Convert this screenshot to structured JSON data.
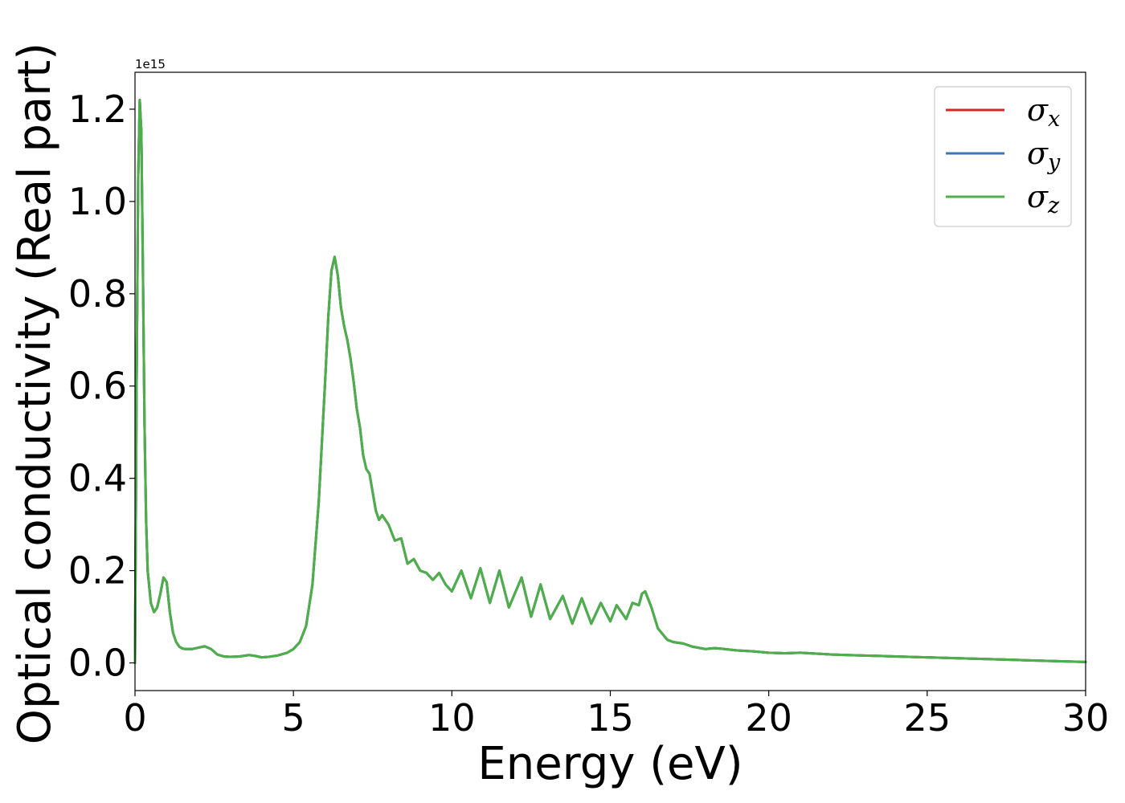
{
  "chart_data": {
    "type": "line",
    "xlabel": "Energy (eV)",
    "ylabel": "Optical conductivity (Real part)",
    "y_offset_text": "1e15",
    "xlim": [
      0,
      30
    ],
    "ylim": [
      -0.06,
      1.28
    ],
    "x_ticks": [
      0,
      5,
      10,
      15,
      20,
      25,
      30
    ],
    "x_tick_labels": [
      "0",
      "5",
      "10",
      "15",
      "20",
      "25",
      "30"
    ],
    "y_ticks": [
      0.0,
      0.2,
      0.4,
      0.6,
      0.8,
      1.0,
      1.2
    ],
    "y_tick_labels": [
      "0.0",
      "0.2",
      "0.4",
      "0.6",
      "0.8",
      "1.0",
      "1.2"
    ],
    "grid": false,
    "legend_position": "top-right",
    "series": [
      {
        "name": "σx",
        "symbol": "σ",
        "subscript": "x",
        "color": "#d62728",
        "x": [
          0,
          0.05,
          0.1,
          0.15,
          0.2,
          0.25,
          0.3,
          0.35,
          0.4,
          0.5,
          0.6,
          0.7,
          0.8,
          0.9,
          1.0,
          1.1,
          1.2,
          1.3,
          1.4,
          1.5,
          1.6,
          1.8,
          2.0,
          2.2,
          2.4,
          2.6,
          2.8,
          3.0,
          3.3,
          3.6,
          3.8,
          4.0,
          4.2,
          4.5,
          4.8,
          5.0,
          5.2,
          5.4,
          5.6,
          5.8,
          6.0,
          6.1,
          6.2,
          6.3,
          6.4,
          6.5,
          6.6,
          6.7,
          6.8,
          6.9,
          7.0,
          7.1,
          7.2,
          7.3,
          7.4,
          7.5,
          7.6,
          7.7,
          7.8,
          8.0,
          8.2,
          8.4,
          8.6,
          8.8,
          9.0,
          9.2,
          9.4,
          9.6,
          9.8,
          10.0,
          10.3,
          10.6,
          10.9,
          11.2,
          11.5,
          11.8,
          12.2,
          12.5,
          12.8,
          13.1,
          13.5,
          13.8,
          14.1,
          14.4,
          14.7,
          15.0,
          15.2,
          15.5,
          15.7,
          15.9,
          16.0,
          16.1,
          16.3,
          16.5,
          16.8,
          17.0,
          17.3,
          17.6,
          18.0,
          18.3,
          18.6,
          19.0,
          19.5,
          20.0,
          20.5,
          21.0,
          21.5,
          22.0,
          22.5,
          23.0,
          23.5,
          24.0,
          25.0,
          26.0,
          27.0,
          28.0,
          29.0,
          30.0
        ],
        "y": [
          0.0,
          0.6,
          1.05,
          1.22,
          1.15,
          0.85,
          0.52,
          0.31,
          0.2,
          0.13,
          0.11,
          0.12,
          0.15,
          0.185,
          0.175,
          0.11,
          0.065,
          0.045,
          0.035,
          0.031,
          0.03,
          0.03,
          0.033,
          0.036,
          0.03,
          0.018,
          0.014,
          0.013,
          0.014,
          0.017,
          0.015,
          0.012,
          0.013,
          0.016,
          0.022,
          0.03,
          0.045,
          0.08,
          0.17,
          0.35,
          0.61,
          0.75,
          0.85,
          0.88,
          0.84,
          0.77,
          0.73,
          0.7,
          0.66,
          0.61,
          0.55,
          0.51,
          0.45,
          0.42,
          0.41,
          0.37,
          0.33,
          0.31,
          0.32,
          0.3,
          0.265,
          0.27,
          0.215,
          0.225,
          0.2,
          0.195,
          0.18,
          0.195,
          0.17,
          0.155,
          0.2,
          0.14,
          0.205,
          0.13,
          0.2,
          0.12,
          0.185,
          0.1,
          0.17,
          0.095,
          0.145,
          0.085,
          0.14,
          0.085,
          0.13,
          0.09,
          0.125,
          0.095,
          0.13,
          0.125,
          0.15,
          0.155,
          0.12,
          0.075,
          0.05,
          0.045,
          0.042,
          0.035,
          0.03,
          0.032,
          0.03,
          0.027,
          0.025,
          0.022,
          0.021,
          0.022,
          0.02,
          0.018,
          0.017,
          0.016,
          0.015,
          0.014,
          0.012,
          0.01,
          0.008,
          0.006,
          0.004,
          0.002
        ]
      },
      {
        "name": "σy",
        "symbol": "σ",
        "subscript": "y",
        "color": "#3a7ab2",
        "x": [
          0,
          0.05,
          0.1,
          0.15,
          0.2,
          0.25,
          0.3,
          0.35,
          0.4,
          0.5,
          0.6,
          0.7,
          0.8,
          0.9,
          1.0,
          1.1,
          1.2,
          1.3,
          1.4,
          1.5,
          1.6,
          1.8,
          2.0,
          2.2,
          2.4,
          2.6,
          2.8,
          3.0,
          3.3,
          3.6,
          3.8,
          4.0,
          4.2,
          4.5,
          4.8,
          5.0,
          5.2,
          5.4,
          5.6,
          5.8,
          6.0,
          6.1,
          6.2,
          6.3,
          6.4,
          6.5,
          6.6,
          6.7,
          6.8,
          6.9,
          7.0,
          7.1,
          7.2,
          7.3,
          7.4,
          7.5,
          7.6,
          7.7,
          7.8,
          8.0,
          8.2,
          8.4,
          8.6,
          8.8,
          9.0,
          9.2,
          9.4,
          9.6,
          9.8,
          10.0,
          10.3,
          10.6,
          10.9,
          11.2,
          11.5,
          11.8,
          12.2,
          12.5,
          12.8,
          13.1,
          13.5,
          13.8,
          14.1,
          14.4,
          14.7,
          15.0,
          15.2,
          15.5,
          15.7,
          15.9,
          16.0,
          16.1,
          16.3,
          16.5,
          16.8,
          17.0,
          17.3,
          17.6,
          18.0,
          18.3,
          18.6,
          19.0,
          19.5,
          20.0,
          20.5,
          21.0,
          21.5,
          22.0,
          22.5,
          23.0,
          23.5,
          24.0,
          25.0,
          26.0,
          27.0,
          28.0,
          29.0,
          30.0
        ],
        "y": [
          0.0,
          0.6,
          1.05,
          1.22,
          1.15,
          0.85,
          0.52,
          0.31,
          0.2,
          0.13,
          0.11,
          0.12,
          0.15,
          0.185,
          0.175,
          0.11,
          0.065,
          0.045,
          0.035,
          0.031,
          0.03,
          0.03,
          0.033,
          0.036,
          0.03,
          0.018,
          0.014,
          0.013,
          0.014,
          0.017,
          0.015,
          0.012,
          0.013,
          0.016,
          0.022,
          0.03,
          0.045,
          0.08,
          0.17,
          0.35,
          0.61,
          0.75,
          0.85,
          0.88,
          0.84,
          0.77,
          0.73,
          0.7,
          0.66,
          0.61,
          0.55,
          0.51,
          0.45,
          0.42,
          0.41,
          0.37,
          0.33,
          0.31,
          0.32,
          0.3,
          0.265,
          0.27,
          0.215,
          0.225,
          0.2,
          0.195,
          0.18,
          0.195,
          0.17,
          0.155,
          0.2,
          0.14,
          0.205,
          0.13,
          0.2,
          0.12,
          0.185,
          0.1,
          0.17,
          0.095,
          0.145,
          0.085,
          0.14,
          0.085,
          0.13,
          0.09,
          0.125,
          0.095,
          0.13,
          0.125,
          0.15,
          0.155,
          0.12,
          0.075,
          0.05,
          0.045,
          0.042,
          0.035,
          0.03,
          0.032,
          0.03,
          0.027,
          0.025,
          0.022,
          0.021,
          0.022,
          0.02,
          0.018,
          0.017,
          0.016,
          0.015,
          0.014,
          0.012,
          0.01,
          0.008,
          0.006,
          0.004,
          0.002
        ]
      },
      {
        "name": "σz",
        "symbol": "σ",
        "subscript": "z",
        "color": "#4daf4a",
        "x": [
          0,
          0.05,
          0.1,
          0.15,
          0.2,
          0.25,
          0.3,
          0.35,
          0.4,
          0.5,
          0.6,
          0.7,
          0.8,
          0.9,
          1.0,
          1.1,
          1.2,
          1.3,
          1.4,
          1.5,
          1.6,
          1.8,
          2.0,
          2.2,
          2.4,
          2.6,
          2.8,
          3.0,
          3.3,
          3.6,
          3.8,
          4.0,
          4.2,
          4.5,
          4.8,
          5.0,
          5.2,
          5.4,
          5.6,
          5.8,
          6.0,
          6.1,
          6.2,
          6.3,
          6.4,
          6.5,
          6.6,
          6.7,
          6.8,
          6.9,
          7.0,
          7.1,
          7.2,
          7.3,
          7.4,
          7.5,
          7.6,
          7.7,
          7.8,
          8.0,
          8.2,
          8.4,
          8.6,
          8.8,
          9.0,
          9.2,
          9.4,
          9.6,
          9.8,
          10.0,
          10.3,
          10.6,
          10.9,
          11.2,
          11.5,
          11.8,
          12.2,
          12.5,
          12.8,
          13.1,
          13.5,
          13.8,
          14.1,
          14.4,
          14.7,
          15.0,
          15.2,
          15.5,
          15.7,
          15.9,
          16.0,
          16.1,
          16.3,
          16.5,
          16.8,
          17.0,
          17.3,
          17.6,
          18.0,
          18.3,
          18.6,
          19.0,
          19.5,
          20.0,
          20.5,
          21.0,
          21.5,
          22.0,
          22.5,
          23.0,
          23.5,
          24.0,
          25.0,
          26.0,
          27.0,
          28.0,
          29.0,
          30.0
        ],
        "y": [
          0.0,
          0.6,
          1.05,
          1.22,
          1.15,
          0.85,
          0.52,
          0.31,
          0.2,
          0.13,
          0.11,
          0.12,
          0.15,
          0.185,
          0.175,
          0.11,
          0.065,
          0.045,
          0.035,
          0.031,
          0.03,
          0.03,
          0.033,
          0.036,
          0.03,
          0.018,
          0.014,
          0.013,
          0.014,
          0.017,
          0.015,
          0.012,
          0.013,
          0.016,
          0.022,
          0.03,
          0.045,
          0.08,
          0.17,
          0.35,
          0.61,
          0.75,
          0.85,
          0.88,
          0.84,
          0.77,
          0.73,
          0.7,
          0.66,
          0.61,
          0.55,
          0.51,
          0.45,
          0.42,
          0.41,
          0.37,
          0.33,
          0.31,
          0.32,
          0.3,
          0.265,
          0.27,
          0.215,
          0.225,
          0.2,
          0.195,
          0.18,
          0.195,
          0.17,
          0.155,
          0.2,
          0.14,
          0.205,
          0.13,
          0.2,
          0.12,
          0.185,
          0.1,
          0.17,
          0.095,
          0.145,
          0.085,
          0.14,
          0.085,
          0.13,
          0.09,
          0.125,
          0.095,
          0.13,
          0.125,
          0.15,
          0.155,
          0.12,
          0.075,
          0.05,
          0.045,
          0.042,
          0.035,
          0.03,
          0.032,
          0.03,
          0.027,
          0.025,
          0.022,
          0.021,
          0.022,
          0.02,
          0.018,
          0.017,
          0.016,
          0.015,
          0.014,
          0.012,
          0.01,
          0.008,
          0.006,
          0.004,
          0.002
        ]
      }
    ]
  }
}
